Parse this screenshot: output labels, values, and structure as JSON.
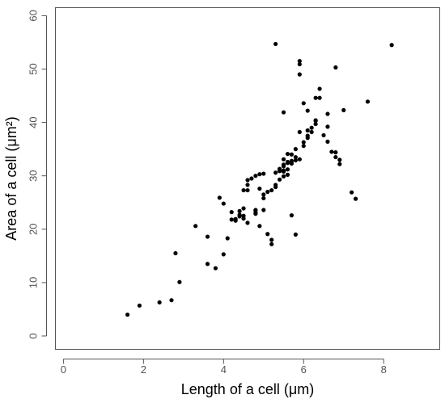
{
  "chart_data": {
    "type": "scatter",
    "title": "",
    "xlabel": "Length of a cell (μm)",
    "ylabel": "Area of a cell (μm²)",
    "xlim": [
      -0.2,
      9.4
    ],
    "ylim": [
      -2.5,
      61.5
    ],
    "xticks": [
      0,
      2,
      4,
      6,
      8
    ],
    "yticks": [
      0,
      10,
      20,
      30,
      40,
      50,
      60
    ],
    "grid": false,
    "legend": "none",
    "marker_color": "#000000",
    "axis_color": "#555555",
    "points": [
      [
        1.6,
        4.0
      ],
      [
        1.9,
        5.7
      ],
      [
        2.4,
        6.3
      ],
      [
        2.7,
        6.7
      ],
      [
        2.8,
        15.5
      ],
      [
        2.9,
        10.1
      ],
      [
        3.3,
        20.6
      ],
      [
        3.6,
        18.6
      ],
      [
        3.6,
        13.5
      ],
      [
        3.8,
        12.7
      ],
      [
        3.9,
        25.9
      ],
      [
        4.0,
        24.8
      ],
      [
        4.0,
        15.3
      ],
      [
        4.1,
        18.3
      ],
      [
        4.2,
        21.8
      ],
      [
        4.2,
        23.2
      ],
      [
        4.3,
        21.9
      ],
      [
        4.3,
        21.6
      ],
      [
        4.4,
        22.7
      ],
      [
        4.4,
        23.4
      ],
      [
        4.4,
        22.4
      ],
      [
        4.5,
        22.0
      ],
      [
        4.5,
        23.9
      ],
      [
        4.5,
        22.5
      ],
      [
        4.5,
        27.3
      ],
      [
        4.6,
        28.3
      ],
      [
        4.6,
        29.2
      ],
      [
        4.6,
        27.3
      ],
      [
        4.6,
        21.2
      ],
      [
        4.7,
        29.5
      ],
      [
        4.8,
        22.9
      ],
      [
        4.8,
        23.6
      ],
      [
        4.8,
        30.0
      ],
      [
        4.8,
        23.1
      ],
      [
        4.8,
        23.5
      ],
      [
        4.9,
        27.6
      ],
      [
        4.9,
        20.6
      ],
      [
        4.9,
        30.3
      ],
      [
        5.0,
        30.4
      ],
      [
        5.0,
        26.5
      ],
      [
        5.0,
        25.8
      ],
      [
        5.0,
        23.6
      ],
      [
        5.1,
        27.0
      ],
      [
        5.1,
        19.1
      ],
      [
        5.2,
        27.3
      ],
      [
        5.2,
        18.0
      ],
      [
        5.2,
        17.2
      ],
      [
        5.3,
        28.3
      ],
      [
        5.3,
        54.7
      ],
      [
        5.3,
        30.6
      ],
      [
        5.3,
        27.9
      ],
      [
        5.4,
        31.3
      ],
      [
        5.4,
        29.3
      ],
      [
        5.4,
        30.9
      ],
      [
        5.5,
        32.1
      ],
      [
        5.5,
        31.8
      ],
      [
        5.5,
        31.0
      ],
      [
        5.5,
        30.8
      ],
      [
        5.5,
        29.9
      ],
      [
        5.5,
        33.1
      ],
      [
        5.6,
        32.4
      ],
      [
        5.6,
        31.2
      ],
      [
        5.6,
        34.1
      ],
      [
        5.5,
        41.9
      ],
      [
        5.6,
        32.6
      ],
      [
        5.6,
        30.2
      ],
      [
        5.7,
        32.8
      ],
      [
        5.7,
        34.0
      ],
      [
        5.7,
        32.3
      ],
      [
        5.7,
        22.6
      ],
      [
        5.8,
        33.5
      ],
      [
        5.8,
        35.0
      ],
      [
        5.8,
        32.9
      ],
      [
        5.8,
        19.0
      ],
      [
        5.9,
        50.9
      ],
      [
        5.9,
        51.5
      ],
      [
        5.9,
        49.0
      ],
      [
        5.9,
        38.2
      ],
      [
        5.9,
        33.1
      ],
      [
        6.0,
        43.6
      ],
      [
        6.0,
        35.6
      ],
      [
        6.0,
        36.3
      ],
      [
        6.1,
        38.5
      ],
      [
        6.1,
        37.1
      ],
      [
        6.1,
        37.5
      ],
      [
        6.1,
        42.2
      ],
      [
        6.2,
        39.0
      ],
      [
        6.2,
        38.2
      ],
      [
        6.3,
        40.3
      ],
      [
        6.3,
        44.6
      ],
      [
        6.3,
        39.7
      ],
      [
        6.3,
        40.4
      ],
      [
        6.4,
        46.3
      ],
      [
        6.4,
        44.6
      ],
      [
        6.5,
        37.6
      ],
      [
        6.6,
        41.6
      ],
      [
        6.6,
        39.2
      ],
      [
        6.6,
        36.4
      ],
      [
        6.7,
        34.5
      ],
      [
        6.8,
        50.3
      ],
      [
        6.8,
        34.4
      ],
      [
        6.8,
        33.5
      ],
      [
        6.9,
        33.0
      ],
      [
        6.9,
        32.2
      ],
      [
        7.0,
        42.3
      ],
      [
        7.2,
        26.9
      ],
      [
        7.3,
        25.7
      ],
      [
        7.6,
        43.9
      ],
      [
        8.2,
        54.5
      ]
    ]
  }
}
